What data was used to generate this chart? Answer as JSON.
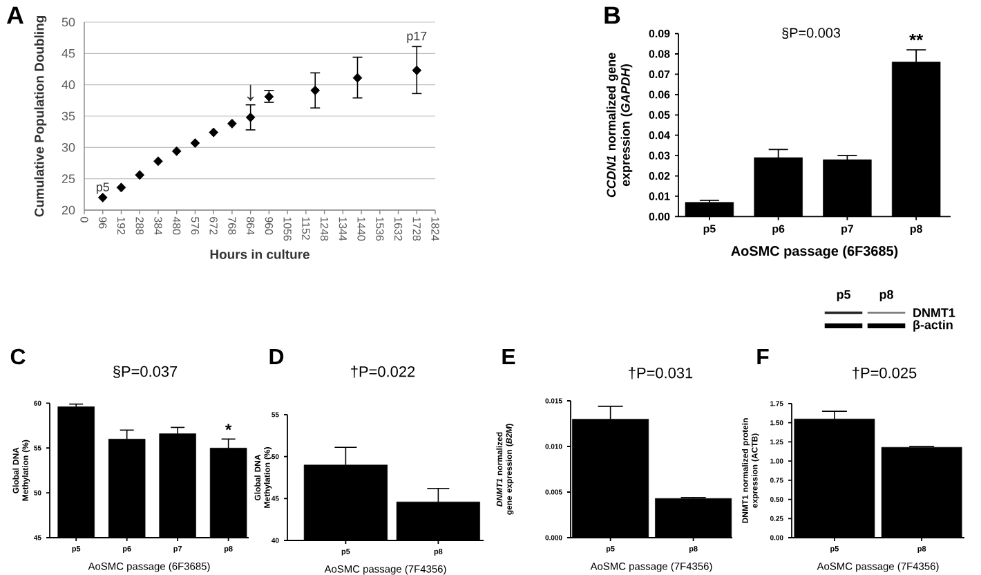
{
  "chart_data": [
    {
      "type": "scatter",
      "annotations": [
        "A",
        {
          "text": "p5",
          "x": 96,
          "y": 22
        },
        {
          "text": "↓",
          "x": 864,
          "y": 34.8
        },
        {
          "text": "p17",
          "x": 1728,
          "y": 42.3
        }
      ],
      "xlabel": "Hours in culture",
      "ylabel": "Cumulative Population Doubling",
      "x": [
        96,
        192,
        288,
        384,
        480,
        576,
        672,
        768,
        864,
        960,
        1200,
        1420,
        1728
      ],
      "values": [
        22,
        23.6,
        25.6,
        27.8,
        29.4,
        30.7,
        32.4,
        33.8,
        34.8,
        38.1,
        39.1,
        41.1,
        42.3
      ],
      "errors": [
        null,
        null,
        null,
        null,
        null,
        null,
        null,
        null,
        [
          32.8,
          36.8
        ],
        [
          37.2,
          39.1
        ],
        [
          36.3,
          41.9
        ],
        [
          37.9,
          44.4
        ],
        [
          38.6,
          46.1
        ]
      ],
      "color": "#000000",
      "marker": "diamond",
      "xlim": [
        0,
        1824
      ],
      "xticks": [
        0,
        96,
        192,
        288,
        384,
        480,
        576,
        672,
        768,
        864,
        960,
        1056,
        1152,
        1248,
        1344,
        1440,
        1536,
        1632,
        1728,
        1824
      ],
      "ylim": [
        20,
        50
      ],
      "yticks": [
        20,
        25,
        30,
        35,
        40,
        45,
        50
      ],
      "grid": "y"
    },
    {
      "type": "bar",
      "title": "§P=0.003",
      "annotations": [
        "B",
        {
          "text": "**",
          "x": "p8",
          "y": 0.076
        }
      ],
      "xlabel": "AoSMC passage (6F3685)",
      "ylabel": "*CCDN1* normalized gene expression (*GAPDH*)",
      "categories": [
        "p5",
        "p6",
        "p7",
        "p8"
      ],
      "values": [
        0.007,
        0.029,
        0.028,
        0.076
      ],
      "errors": [
        [
          0.007,
          0.008
        ],
        [
          0.029,
          0.033
        ],
        [
          0.028,
          0.03
        ],
        [
          0.076,
          0.082
        ]
      ],
      "color": "#000000",
      "ylim": [
        0,
        0.09
      ],
      "yticks": [
        {
          "value": 0,
          "label": "0.00"
        },
        0.01,
        0.02,
        0.03,
        0.04,
        0.05,
        0.06,
        0.07,
        0.08,
        0.09
      ]
    },
    {
      "type": "bar",
      "title": "§P=0.037",
      "annotations": [
        "C",
        {
          "text": "*",
          "x": "p8",
          "y": 55
        }
      ],
      "xlabel": "AoSMC passage (6F3685)",
      "ylabel": "Global DNA Methylation (%)",
      "categories": [
        "p5",
        "p6",
        "p7",
        "p8"
      ],
      "values": [
        59.6,
        56,
        56.6,
        55
      ],
      "errors": [
        [
          59.6,
          59.9
        ],
        [
          56,
          57
        ],
        [
          56.6,
          57.3
        ],
        [
          55,
          56
        ]
      ],
      "color": "#000000",
      "ylim": [
        45,
        60
      ],
      "yticks": [
        45,
        50,
        55,
        60
      ]
    },
    {
      "type": "bar",
      "title": "†P=0.022",
      "annotations": [
        "D"
      ],
      "xlabel": "AoSMC passage (7F4356)",
      "ylabel": "Global DNA Methylation (%)",
      "categories": [
        "p5",
        "p8"
      ],
      "values": [
        49,
        44.6
      ],
      "errors": [
        [
          49,
          51.1
        ],
        [
          44.6,
          46.2
        ]
      ],
      "color": "#000000",
      "ylim": [
        40,
        55
      ],
      "yticks": [
        40,
        45,
        50,
        55
      ]
    },
    {
      "type": "bar",
      "title": "†P=0.031",
      "annotations": [
        "E"
      ],
      "xlabel": "AoSMC passage (7F4356)",
      "ylabel": "*DNMT1* normalized gene expression (*B2M*)",
      "categories": [
        "p5",
        "p8"
      ],
      "values": [
        0.013,
        0.0043
      ],
      "errors": [
        [
          0.013,
          0.0144
        ],
        [
          0.0043,
          0.0044
        ]
      ],
      "color": "#000000",
      "ylim": [
        0,
        0.015
      ],
      "yticks": [
        {
          "value": 0,
          "label": "0.000"
        },
        0.005,
        {
          "value": 0.01,
          "label": "0.010"
        },
        0.015
      ]
    },
    {
      "type": "bar",
      "title": "†P=0.025",
      "annotations": [
        "F"
      ],
      "xlabel": "AoSMC passage (7F4356)",
      "ylabel": "DNMT1 normalized protein expression (ACTB)",
      "categories": [
        "p5",
        "p8"
      ],
      "values": [
        1.55,
        1.18
      ],
      "errors": [
        [
          1.55,
          1.65
        ],
        [
          1.18,
          1.19
        ]
      ],
      "color": "#000000",
      "ylim": [
        0,
        1.75
      ],
      "yticks": [
        {
          "value": 0,
          "label": "0.00"
        },
        0.25,
        {
          "value": 0.5,
          "label": "0.50"
        },
        0.75,
        {
          "value": 1,
          "label": "1.00"
        },
        1.25,
        {
          "value": 1.5,
          "label": "1.50"
        },
        1.75
      ]
    },
    {
      "type": "other",
      "categories": [
        "p5",
        "p8"
      ],
      "y_categories": [
        "DNMT1",
        "β-actin"
      ]
    }
  ]
}
